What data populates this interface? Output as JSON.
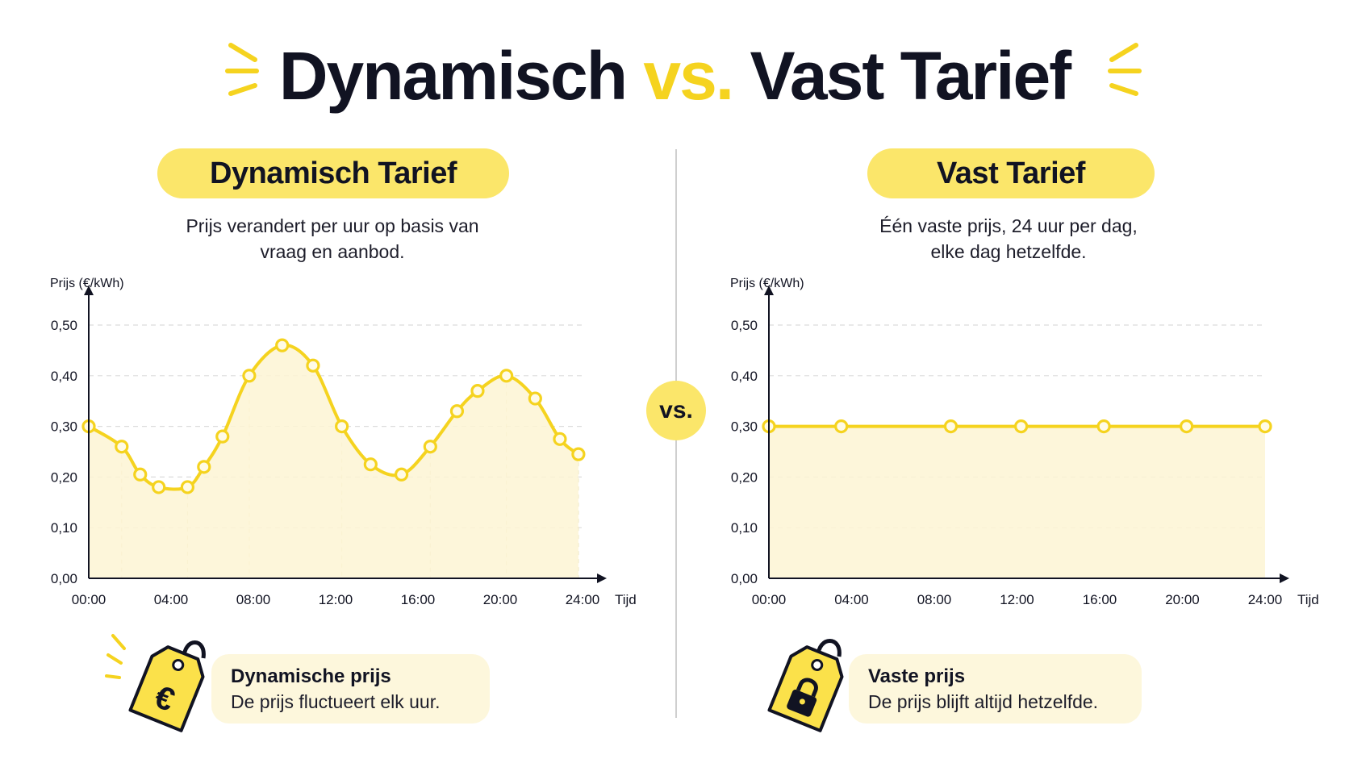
{
  "header": {
    "title_part1": "Dynamisch",
    "title_vs": "vs.",
    "title_part2": "Vast Tarief"
  },
  "left_panel": {
    "badge": "Dynamisch Tarief",
    "description_line1": "Prijs verandert per uur op basis van",
    "description_line2": "vraag en aanbod.",
    "card_title": "Dynamische prijs",
    "card_text": "De prijs fluctueert elk uur.",
    "tag_icon": "euro-price-tag-icon"
  },
  "right_panel": {
    "badge": "Vast Tarief",
    "description_line1": "Één vaste prijs, 24 uur per dag,",
    "description_line2": "elke dag hetzelfde.",
    "card_title": "Vaste prijs",
    "card_text": "De prijs blijft altijd hetzelfde.",
    "tag_icon": "lock-price-tag-icon"
  },
  "center": {
    "vs_label": "vs."
  },
  "colors": {
    "accent": "#f5d31f",
    "accent_light": "#fbe66a",
    "fill": "#fdf5d3",
    "text": "#111322"
  },
  "chart_data": [
    {
      "type": "area",
      "ylabel": "Prijs (€/kWh)",
      "xlabel": "Tijd",
      "ylim": [
        0,
        0.5
      ],
      "xlim": [
        0,
        24
      ],
      "y_ticks": [
        "0,00",
        "0,10",
        "0,20",
        "0,30",
        "0,40",
        "0,50"
      ],
      "x_ticks": [
        "00:00",
        "04:00",
        "08:00",
        "12:00",
        "16:00",
        "20:00",
        "24:00"
      ],
      "grid": true,
      "series": [
        {
          "x": [
            0,
            1.6,
            2.5,
            3.4,
            4.8,
            5.6,
            6.5,
            7.8,
            9.4,
            10.9,
            12.3,
            13.7,
            15.2,
            16.6,
            17.9,
            18.9,
            20.3,
            21.7,
            22.9,
            23.8
          ],
          "y": [
            0.3,
            0.26,
            0.205,
            0.18,
            0.18,
            0.22,
            0.28,
            0.4,
            0.46,
            0.42,
            0.3,
            0.225,
            0.205,
            0.26,
            0.33,
            0.37,
            0.4,
            0.355,
            0.275,
            0.245
          ]
        }
      ]
    },
    {
      "type": "area",
      "ylabel": "Prijs (€/kWh)",
      "xlabel": "Tijd",
      "ylim": [
        0,
        0.5
      ],
      "xlim": [
        0,
        24
      ],
      "y_ticks": [
        "0,00",
        "0,10",
        "0,20",
        "0,30",
        "0,40",
        "0,50"
      ],
      "x_ticks": [
        "00:00",
        "04:00",
        "08:00",
        "12:00",
        "16:00",
        "20:00",
        "24:00"
      ],
      "grid": true,
      "series": [
        {
          "x": [
            0,
            3.5,
            8.8,
            12.2,
            16.2,
            20.2,
            24
          ],
          "y": [
            0.3,
            0.3,
            0.3,
            0.3,
            0.3,
            0.3,
            0.3
          ]
        }
      ]
    }
  ]
}
